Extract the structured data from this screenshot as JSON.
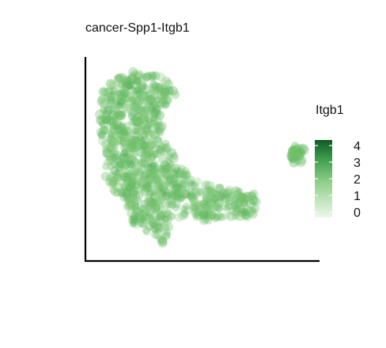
{
  "chart_data": {
    "type": "scatter",
    "title": "cancer-Spp1-Itgb1",
    "xlabel": "",
    "ylabel": "",
    "axis_ticks": false,
    "grid": false,
    "point_color": "#6fbf6a",
    "point_alpha": 0.35,
    "legend": {
      "title": "Itgb1",
      "type": "colorbar",
      "placement": "right",
      "ticks": [
        "4",
        "3",
        "2",
        "1",
        "0"
      ],
      "range": [
        0,
        4
      ],
      "color_low": "#eef7ec",
      "color_high": "#0f5a26"
    },
    "clusters": [
      {
        "name": "main",
        "shape": [
          [
            -5.0,
            5.2
          ],
          [
            -3.6,
            6.3
          ],
          [
            -1.2,
            6.1
          ],
          [
            0.1,
            5.0
          ],
          [
            -0.6,
            4.2
          ],
          [
            -1.2,
            3.6
          ],
          [
            -0.5,
            2.0
          ],
          [
            0.6,
            0.7
          ],
          [
            2.0,
            -0.2
          ],
          [
            4.0,
            -0.6
          ],
          [
            5.7,
            -0.9
          ],
          [
            5.4,
            -2.0
          ],
          [
            4.0,
            -2.5
          ],
          [
            2.2,
            -2.4
          ],
          [
            0.8,
            -2.0
          ],
          [
            -0.3,
            -2.3
          ],
          [
            -0.6,
            -3.2
          ],
          [
            -1.0,
            -3.9
          ],
          [
            -1.5,
            -3.1
          ],
          [
            -2.0,
            -3.0
          ],
          [
            -3.1,
            -2.5
          ],
          [
            -3.4,
            -1.4
          ],
          [
            -4.3,
            -0.6
          ],
          [
            -5.0,
            0.3
          ],
          [
            -4.7,
            1.4
          ],
          [
            -5.2,
            2.6
          ],
          [
            -5.3,
            3.9
          ]
        ],
        "n_points": 900
      },
      {
        "name": "satellite",
        "shape": [
          [
            7.8,
            1.6
          ],
          [
            8.3,
            2.2
          ],
          [
            8.8,
            1.8
          ],
          [
            8.6,
            1.0
          ],
          [
            8.0,
            0.9
          ]
        ],
        "n_points": 40
      }
    ],
    "xlim": [
      -6,
      9.5
    ],
    "ylim": [
      -4.5,
      7
    ]
  }
}
